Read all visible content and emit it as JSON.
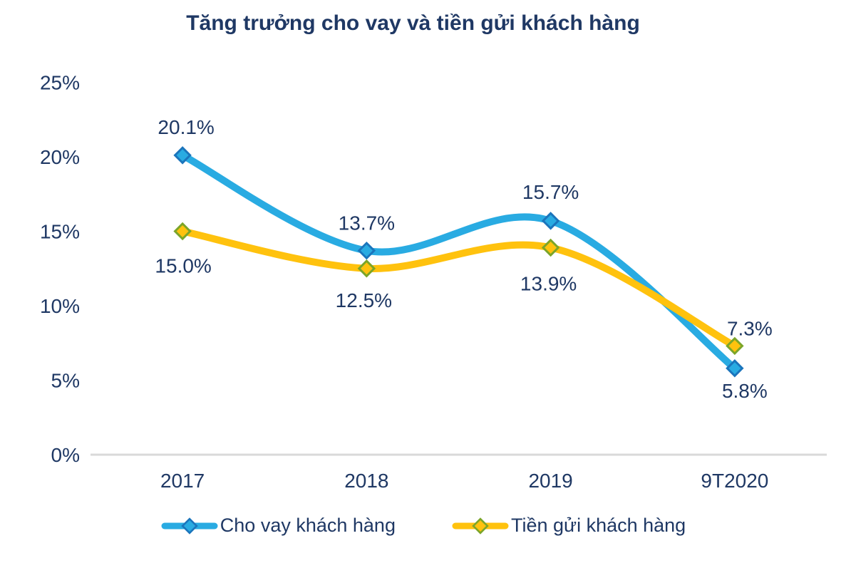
{
  "title": "Tăng trưởng cho vay và tiền gửi khách hàng",
  "chart_data": {
    "type": "line",
    "title": "Tăng trưởng cho vay và tiền gửi khách hàng",
    "categories": [
      "2017",
      "2018",
      "2019",
      "9T2020"
    ],
    "series": [
      {
        "name": "Cho vay khách hàng",
        "values": [
          20.1,
          13.7,
          15.7,
          5.8
        ],
        "labels": [
          "20.1%",
          "13.7%",
          "15.7%",
          "5.8%"
        ],
        "color": "#29ABE2",
        "marker": "diamond",
        "marker_border": "#1B75BC",
        "label_positions": [
          "above",
          "above",
          "above",
          "below"
        ]
      },
      {
        "name": "Tiền gửi khách hàng",
        "values": [
          15.0,
          12.5,
          13.9,
          7.3
        ],
        "labels": [
          "15.0%",
          "12.5%",
          "13.9%",
          "7.3%"
        ],
        "color": "#FFC20E",
        "marker": "diamond",
        "marker_border": "#7BA529",
        "label_positions": [
          "below",
          "below",
          "below",
          "above"
        ]
      }
    ],
    "yticks": [
      {
        "value": 25,
        "label": "25%"
      },
      {
        "value": 20,
        "label": "20%"
      },
      {
        "value": 15,
        "label": "15%"
      },
      {
        "value": 10,
        "label": "10%"
      },
      {
        "value": 5,
        "label": "5%"
      },
      {
        "value": 0,
        "label": "0%"
      }
    ],
    "ylim": [
      0,
      25
    ],
    "grid": false,
    "line_smooth": true,
    "legend_position": "bottom",
    "axis_line_color": "#D9D9D9",
    "text_color": "#1F3864",
    "background": "#FFFFFF"
  },
  "legend": {
    "items": [
      {
        "label": "Cho vay khách hàng"
      },
      {
        "label": "Tiền gửi khách hàng"
      }
    ]
  }
}
